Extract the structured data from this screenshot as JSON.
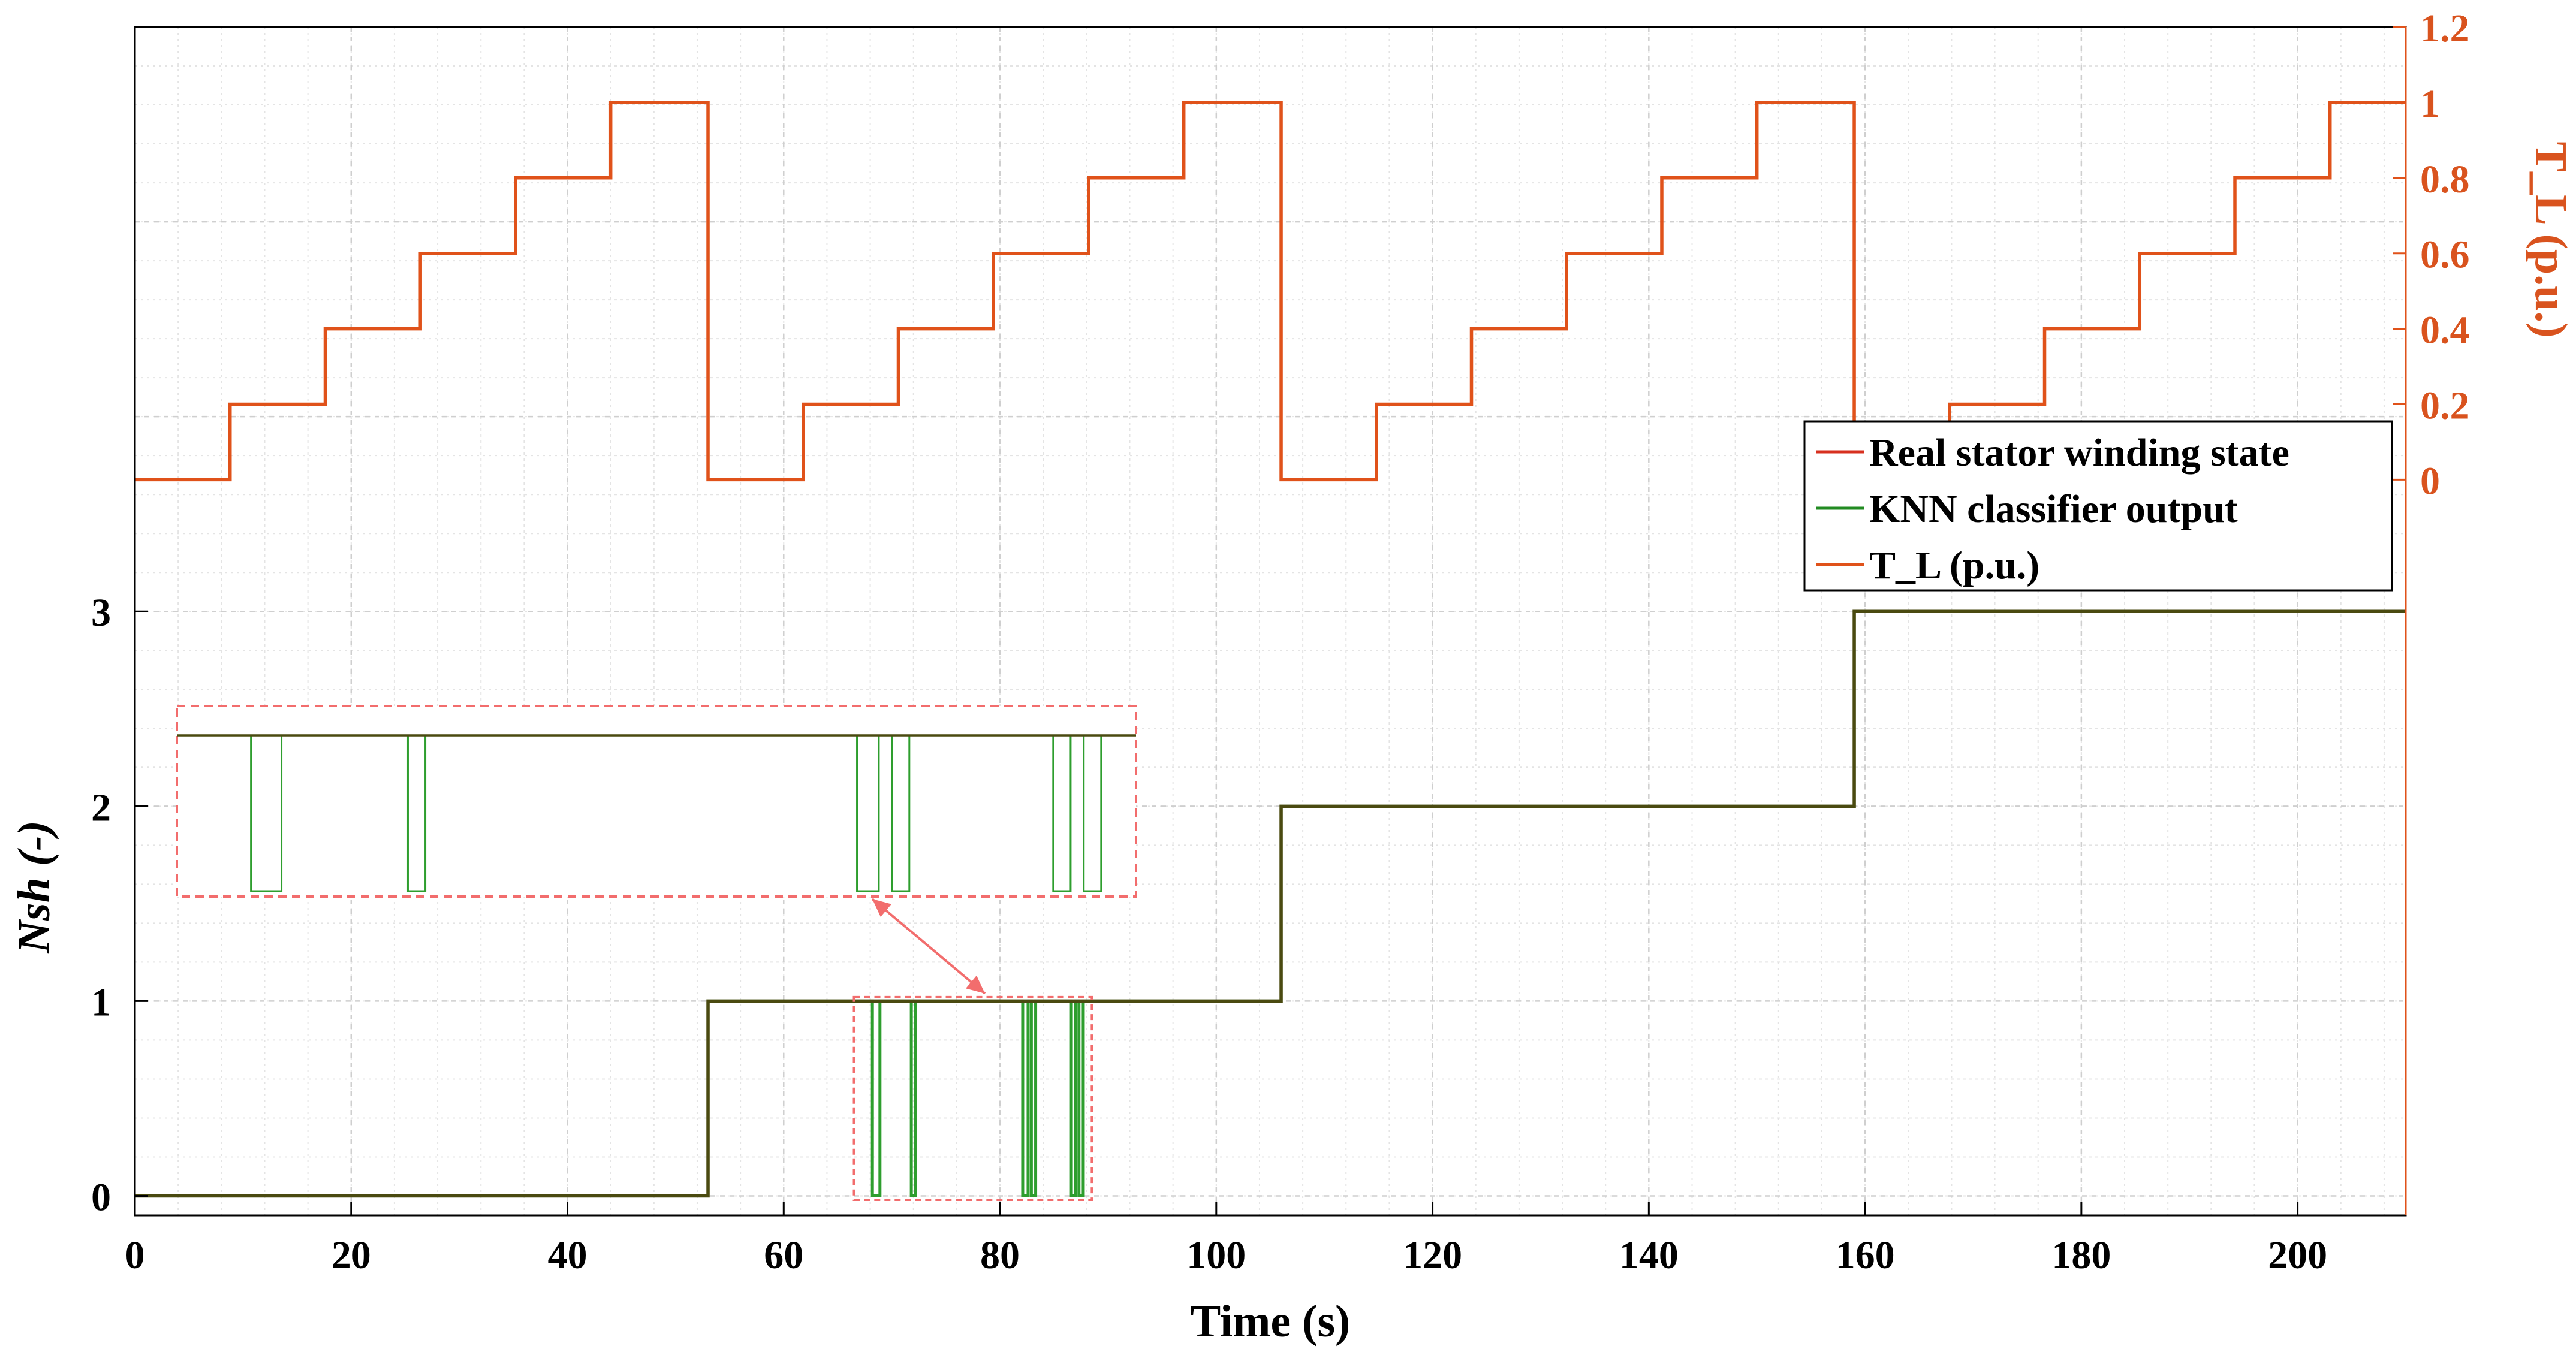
{
  "chart_data": {
    "type": "line",
    "title": "",
    "xlabel": "Time (s)",
    "ylabel": "Nsh  (-)",
    "ylabel2": "T_L (p.u.)",
    "xlim": [
      0,
      210
    ],
    "ylim": [
      -0.1,
      6
    ],
    "ylim2": [
      -1.95,
      1.2
    ],
    "xticks": [
      0,
      20,
      40,
      60,
      80,
      100,
      120,
      140,
      160,
      180,
      200
    ],
    "yticks": [
      0,
      1,
      2,
      3
    ],
    "yticks2": [
      0,
      0.2,
      0.4,
      0.6,
      0.8,
      1,
      1.2
    ],
    "grid": true,
    "legend_position": "right",
    "legend": [
      {
        "label": "Real stator winding state",
        "color": "#d7301f"
      },
      {
        "label": "KNN classifier output",
        "color": "#228b22"
      },
      {
        "label": "T_L (p.u.)",
        "color": "#e0521a"
      }
    ],
    "series": [
      {
        "name": "Real stator winding state",
        "axis": "left",
        "step": true,
        "color": "#4a4a10",
        "x": [
          0,
          53,
          53,
          106,
          106,
          159,
          159,
          210
        ],
        "y": [
          0,
          0,
          1,
          1,
          2,
          2,
          3,
          3
        ]
      },
      {
        "name": "KNN classifier output",
        "axis": "left",
        "step": true,
        "color": "#2e9e2e",
        "x": [
          0,
          53,
          53,
          68.2,
          68.2,
          68.9,
          68.9,
          71.8,
          71.8,
          72.2,
          72.2,
          82.1,
          82.1,
          82.6,
          82.6,
          82.9,
          82.9,
          83.3,
          83.3,
          86.6,
          86.6,
          87.0,
          87.0,
          87.3,
          87.3,
          87.7,
          87.7,
          106,
          106,
          159,
          159,
          210
        ],
        "y": [
          0,
          0,
          1,
          1,
          0,
          0,
          1,
          1,
          0,
          0,
          1,
          1,
          0,
          0,
          1,
          1,
          0,
          0,
          1,
          1,
          0,
          0,
          1,
          1,
          0,
          0,
          1,
          1,
          2,
          2,
          3,
          3
        ]
      },
      {
        "name": "T_L (p.u.)",
        "axis": "right",
        "step": true,
        "color": "#e0521a",
        "x": [
          0,
          8.8,
          8.8,
          17.6,
          17.6,
          26.4,
          26.4,
          35.2,
          35.2,
          44,
          44,
          53,
          53,
          61.8,
          61.8,
          70.6,
          70.6,
          79.4,
          79.4,
          88.2,
          88.2,
          97,
          97,
          106,
          106,
          114.8,
          114.8,
          123.6,
          123.6,
          132.4,
          132.4,
          141.2,
          141.2,
          150,
          150,
          159,
          159,
          167.8,
          167.8,
          176.6,
          176.6,
          185.4,
          185.4,
          194.2,
          194.2,
          203,
          203,
          210
        ],
        "y": [
          0,
          0,
          0.2,
          0.2,
          0.4,
          0.4,
          0.6,
          0.6,
          0.8,
          0.8,
          1,
          1,
          0,
          0,
          0.2,
          0.2,
          0.4,
          0.4,
          0.6,
          0.6,
          0.8,
          0.8,
          1,
          1,
          0,
          0,
          0.2,
          0.2,
          0.4,
          0.4,
          0.6,
          0.6,
          0.8,
          0.8,
          1,
          1,
          0,
          0,
          0.2,
          0.2,
          0.4,
          0.4,
          0.6,
          0.6,
          0.8,
          0.8,
          1,
          1
        ]
      }
    ],
    "zoom_inset": {
      "source_x": [
        66.5,
        88.5
      ],
      "source_y": [
        -0.02,
        1.02
      ],
      "colors": {
        "box": "#f26d6d"
      }
    }
  }
}
